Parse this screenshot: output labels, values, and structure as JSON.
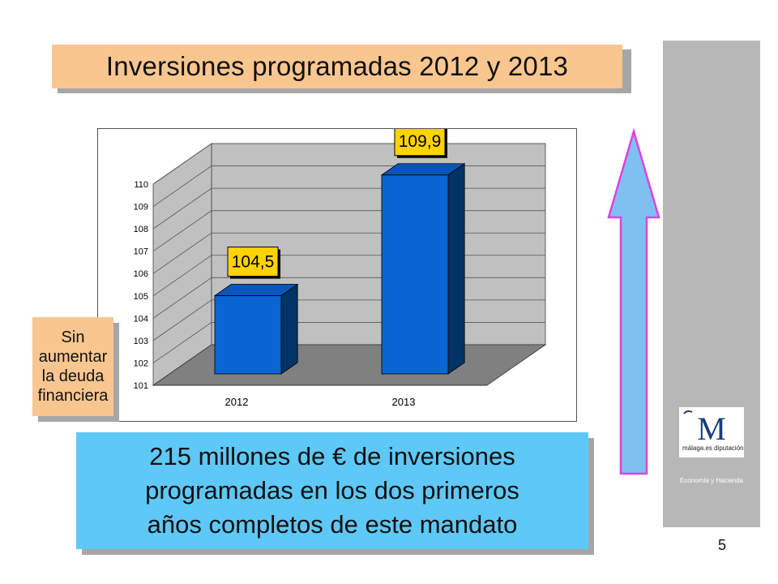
{
  "title": "Inversiones programadas 2012 y 2013",
  "side_note": "Sin\naumentar\nla deuda\nfinanciera",
  "bottom_note": "215 millones de € de inversiones\nprogramadas en los dos primeros\naños completos de este mandato",
  "logo": {
    "text": "M",
    "caption": "málaga.es diputación"
  },
  "department": "Economía y Hacienda",
  "page_number": "5",
  "colors": {
    "accent_orange": "#f9c690",
    "info_blue": "#5ec8f8",
    "bar_front": "#0a64d2",
    "bar_side": "#003366",
    "bar_top": "#0a55b8",
    "label_yellow": "#ffd200",
    "arrow_fill": "#7fc0f0",
    "arrow_stroke": "#e040e0",
    "sidebar_gray": "#b7b7b7"
  },
  "chart_data": {
    "type": "bar",
    "categories": [
      "2012",
      "2013"
    ],
    "values": [
      104.5,
      109.9
    ],
    "data_labels": [
      "104,5",
      "109,9"
    ],
    "ylim": [
      101,
      110
    ],
    "yticks": [
      "101",
      "102",
      "103",
      "104",
      "105",
      "106",
      "107",
      "108",
      "109",
      "110"
    ],
    "grid": true,
    "style": "3d"
  }
}
